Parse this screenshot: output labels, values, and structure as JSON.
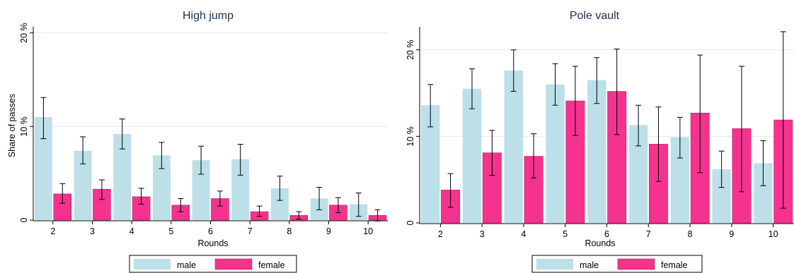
{
  "colors": {
    "male": "#bcdfe8",
    "female": "#f5338f",
    "title": "#1f2f52",
    "grid": "#e3ebee"
  },
  "chart_data": [
    {
      "type": "bar",
      "title": "High jump",
      "xlabel": "Rounds",
      "ylabel": "Share of passes",
      "categories": [
        "2",
        "3",
        "4",
        "5",
        "6",
        "7",
        "8",
        "9",
        "10"
      ],
      "yticks": [
        0,
        10,
        20
      ],
      "ytick_labels": [
        "0",
        "10 %",
        "20 %"
      ],
      "ylim": [
        0,
        20.5
      ],
      "grid": true,
      "legend_position": "bottom",
      "series": [
        {
          "name": "male",
          "values": [
            11.0,
            7.4,
            9.2,
            6.9,
            6.4,
            6.5,
            3.4,
            2.3,
            1.7
          ],
          "ci_low": [
            8.7,
            6.0,
            7.6,
            5.5,
            4.9,
            4.8,
            2.1,
            1.1,
            0.4
          ],
          "ci_high": [
            13.1,
            8.9,
            10.8,
            8.3,
            7.9,
            8.1,
            4.7,
            3.5,
            2.9
          ]
        },
        {
          "name": "female",
          "values": [
            2.8,
            3.3,
            2.5,
            1.6,
            2.3,
            0.9,
            0.5,
            1.6,
            0.5
          ],
          "ci_low": [
            1.8,
            2.2,
            1.7,
            0.9,
            1.5,
            0.4,
            0.1,
            0.8,
            -0.1
          ],
          "ci_high": [
            3.9,
            4.3,
            3.4,
            2.3,
            3.1,
            1.5,
            0.9,
            2.4,
            1.1
          ]
        }
      ]
    },
    {
      "type": "bar",
      "title": "Pole vault",
      "xlabel": "Rounds",
      "ylabel": "",
      "categories": [
        "2",
        "3",
        "4",
        "5",
        "6",
        "7",
        "8",
        "9",
        "10"
      ],
      "yticks": [
        0,
        10,
        20
      ],
      "ytick_labels": [
        "0",
        "10 %",
        "20 %"
      ],
      "ylim": [
        0,
        22.5
      ],
      "grid": true,
      "legend_position": "bottom",
      "series": [
        {
          "name": "male",
          "values": [
            13.6,
            15.5,
            17.6,
            16.0,
            16.5,
            11.3,
            9.9,
            6.2,
            6.9
          ],
          "ci_low": [
            11.1,
            13.2,
            15.2,
            13.6,
            13.8,
            8.9,
            7.5,
            4.1,
            4.3
          ],
          "ci_high": [
            16.0,
            17.8,
            20.0,
            18.4,
            19.1,
            13.6,
            12.2,
            8.3,
            9.5
          ]
        },
        {
          "name": "female",
          "values": [
            3.8,
            8.1,
            7.7,
            14.1,
            15.2,
            9.1,
            12.7,
            10.9,
            11.9
          ],
          "ci_low": [
            1.8,
            5.5,
            5.2,
            10.1,
            10.2,
            4.8,
            5.8,
            3.6,
            1.7
          ],
          "ci_high": [
            5.7,
            10.7,
            10.3,
            18.1,
            20.1,
            13.4,
            19.4,
            18.1,
            22.1
          ]
        }
      ]
    }
  ]
}
